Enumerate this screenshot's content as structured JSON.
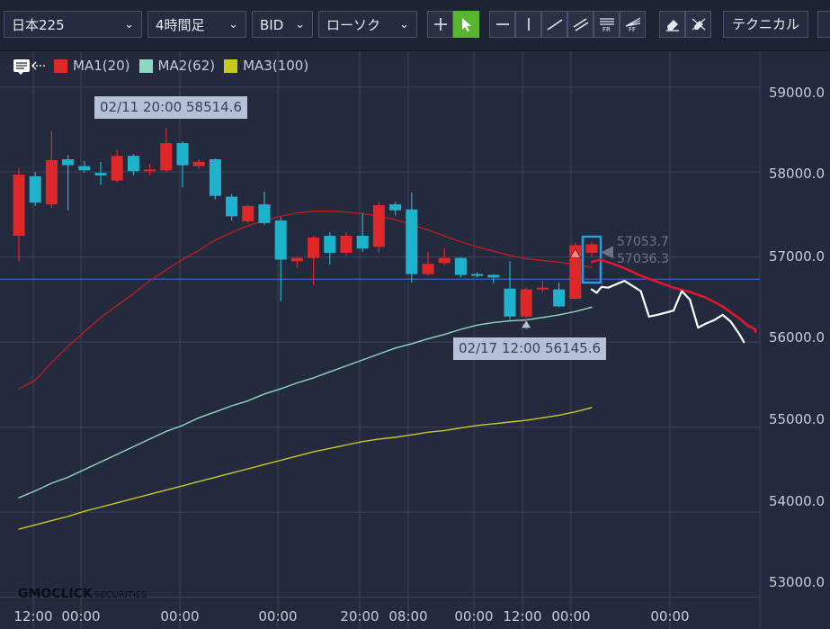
{
  "toolbar": {
    "symbol": "日本225",
    "timeframe": "4時間足",
    "price_type": "BID",
    "chart_style": "ローソク",
    "technical_label": "テクニカル"
  },
  "colors": {
    "background": "#242a3e",
    "toolbar": "#1e2333",
    "active_tool": "#58b532",
    "bull_candle": "#e02727",
    "bear_candle": "#1eb3cc",
    "ma1": "#b71c1c",
    "ma2": "#8fd8c0",
    "ma3": "#c8c81e",
    "current_price_line": "#3b62b8",
    "annotation_red": "#e0152d",
    "annotation_white": "#ffffff",
    "highlight_box": "#1fa0e8"
  },
  "legend": [
    {
      "label": "MA1(20)",
      "color": "#e02727"
    },
    {
      "label": "MA2(62)",
      "color": "#8fd8c0"
    },
    {
      "label": "MA3(100)",
      "color": "#c8c81e"
    }
  ],
  "tooltips": {
    "high": "02/11 20:00 58514.6",
    "low": "02/17 12:00 56145.6"
  },
  "price_labels": {
    "upper": "57053.7",
    "lower": "57036.3"
  },
  "logo": {
    "main": "GMOCLICK",
    "sub": "SECURITIES"
  },
  "chart_data": {
    "type": "candlestick",
    "x_labels": [
      "12:00",
      "00:00",
      "00:00",
      "00:00",
      "20:00",
      "08:00",
      "00:00",
      "12:00",
      "00:00",
      "00:00"
    ],
    "y_labels": [
      "59000.0",
      "58000.0",
      "57000.0",
      "56000.0",
      "55000.0",
      "54000.0",
      "53000.0"
    ],
    "y_ticks": [
      59000,
      58000,
      57000,
      56000,
      55000,
      54000,
      53000
    ],
    "ylim": [
      52880,
      59420
    ],
    "x_range": [
      0,
      45
    ],
    "current_price": 56740,
    "candles": [
      {
        "i": 0,
        "o": 57250,
        "c": 57970,
        "h": 58050,
        "l": 56950
      },
      {
        "i": 1,
        "o": 57950,
        "c": 57640,
        "h": 58000,
        "l": 57600
      },
      {
        "i": 2,
        "o": 57620,
        "c": 58140,
        "h": 58480,
        "l": 57580
      },
      {
        "i": 3,
        "o": 58150,
        "c": 58080,
        "h": 58200,
        "l": 57550
      },
      {
        "i": 4,
        "o": 58070,
        "c": 58020,
        "h": 58130,
        "l": 57990
      },
      {
        "i": 5,
        "o": 57990,
        "c": 57960,
        "h": 58120,
        "l": 57850
      },
      {
        "i": 6,
        "o": 57900,
        "c": 58190,
        "h": 58260,
        "l": 57880
      },
      {
        "i": 7,
        "o": 58190,
        "c": 58010,
        "h": 58210,
        "l": 57960
      },
      {
        "i": 8,
        "o": 58020,
        "c": 58030,
        "h": 58100,
        "l": 57960
      },
      {
        "i": 9,
        "o": 58020,
        "c": 58340,
        "h": 58514.6,
        "l": 57990
      },
      {
        "i": 10,
        "o": 58340,
        "c": 58080,
        "h": 58360,
        "l": 57820
      },
      {
        "i": 11,
        "o": 58070,
        "c": 58120,
        "h": 58150,
        "l": 58040
      },
      {
        "i": 12,
        "o": 58150,
        "c": 57720,
        "h": 58160,
        "l": 57680
      },
      {
        "i": 13,
        "o": 57710,
        "c": 57480,
        "h": 57740,
        "l": 57430
      },
      {
        "i": 14,
        "o": 57420,
        "c": 57600,
        "h": 57620,
        "l": 57400
      },
      {
        "i": 15,
        "o": 57620,
        "c": 57400,
        "h": 57770,
        "l": 57380
      },
      {
        "i": 16,
        "o": 57430,
        "c": 56970,
        "h": 57470,
        "l": 56480
      },
      {
        "i": 17,
        "o": 56950,
        "c": 56990,
        "h": 57000,
        "l": 56880
      },
      {
        "i": 18,
        "o": 56990,
        "c": 57230,
        "h": 57250,
        "l": 56670
      },
      {
        "i": 19,
        "o": 57250,
        "c": 57050,
        "h": 57290,
        "l": 56910
      },
      {
        "i": 20,
        "o": 57050,
        "c": 57250,
        "h": 57290,
        "l": 57020
      },
      {
        "i": 21,
        "o": 57250,
        "c": 57100,
        "h": 57520,
        "l": 57060
      },
      {
        "i": 22,
        "o": 57120,
        "c": 57610,
        "h": 57650,
        "l": 57050
      },
      {
        "i": 23,
        "o": 57620,
        "c": 57550,
        "h": 57650,
        "l": 57490
      },
      {
        "i": 24,
        "o": 57560,
        "c": 56800,
        "h": 57760,
        "l": 56700
      },
      {
        "i": 25,
        "o": 56800,
        "c": 56920,
        "h": 57060,
        "l": 56780
      },
      {
        "i": 26,
        "o": 56930,
        "c": 56990,
        "h": 57100,
        "l": 56900
      },
      {
        "i": 27,
        "o": 56990,
        "c": 56790,
        "h": 57000,
        "l": 56760
      },
      {
        "i": 28,
        "o": 56800,
        "c": 56790,
        "h": 56820,
        "l": 56760
      },
      {
        "i": 29,
        "o": 56790,
        "c": 56760,
        "h": 56800,
        "l": 56690
      },
      {
        "i": 30,
        "o": 56630,
        "c": 56300,
        "h": 56950,
        "l": 56260
      },
      {
        "i": 31,
        "o": 56300,
        "c": 56620,
        "h": 56640,
        "l": 56145.6
      },
      {
        "i": 32,
        "o": 56620,
        "c": 56640,
        "h": 56720,
        "l": 56590
      },
      {
        "i": 33,
        "o": 56620,
        "c": 56420,
        "h": 56700,
        "l": 56410
      },
      {
        "i": 34,
        "o": 56510,
        "c": 57140,
        "h": 57170,
        "l": 56500
      },
      {
        "i": 35,
        "o": 57050,
        "c": 57150,
        "h": 57180,
        "l": 57000
      }
    ],
    "ma1": [
      [
        0,
        55450
      ],
      [
        1,
        55550
      ],
      [
        2,
        55760
      ],
      [
        3,
        55950
      ],
      [
        4,
        56120
      ],
      [
        5,
        56290
      ],
      [
        6,
        56430
      ],
      [
        7,
        56570
      ],
      [
        8,
        56720
      ],
      [
        9,
        56850
      ],
      [
        10,
        56970
      ],
      [
        11,
        57080
      ],
      [
        12,
        57200
      ],
      [
        13,
        57290
      ],
      [
        14,
        57370
      ],
      [
        15,
        57430
      ],
      [
        16,
        57480
      ],
      [
        17,
        57520
      ],
      [
        18,
        57540
      ],
      [
        19,
        57540
      ],
      [
        20,
        57530
      ],
      [
        21,
        57510
      ],
      [
        22,
        57480
      ],
      [
        23,
        57440
      ],
      [
        24,
        57380
      ],
      [
        25,
        57320
      ],
      [
        26,
        57250
      ],
      [
        27,
        57180
      ],
      [
        28,
        57120
      ],
      [
        29,
        57070
      ],
      [
        30,
        57020
      ],
      [
        31,
        56980
      ],
      [
        32,
        56960
      ],
      [
        33,
        56940
      ],
      [
        34,
        56910
      ],
      [
        35,
        56880
      ]
    ],
    "ma2": [
      [
        0,
        54170
      ],
      [
        1,
        54250
      ],
      [
        2,
        54340
      ],
      [
        3,
        54410
      ],
      [
        4,
        54500
      ],
      [
        5,
        54590
      ],
      [
        6,
        54680
      ],
      [
        7,
        54770
      ],
      [
        8,
        54860
      ],
      [
        9,
        54950
      ],
      [
        10,
        55020
      ],
      [
        11,
        55110
      ],
      [
        12,
        55180
      ],
      [
        13,
        55250
      ],
      [
        14,
        55310
      ],
      [
        15,
        55390
      ],
      [
        16,
        55450
      ],
      [
        17,
        55520
      ],
      [
        18,
        55580
      ],
      [
        19,
        55650
      ],
      [
        20,
        55720
      ],
      [
        21,
        55790
      ],
      [
        22,
        55860
      ],
      [
        23,
        55930
      ],
      [
        24,
        55980
      ],
      [
        25,
        56040
      ],
      [
        26,
        56090
      ],
      [
        27,
        56150
      ],
      [
        28,
        56200
      ],
      [
        29,
        56230
      ],
      [
        30,
        56250
      ],
      [
        31,
        56260
      ],
      [
        32,
        56290
      ],
      [
        33,
        56320
      ],
      [
        34,
        56360
      ],
      [
        35,
        56410
      ]
    ],
    "ma3": [
      [
        0,
        53800
      ],
      [
        1,
        53850
      ],
      [
        2,
        53900
      ],
      [
        3,
        53950
      ],
      [
        4,
        54010
      ],
      [
        5,
        54060
      ],
      [
        6,
        54110
      ],
      [
        7,
        54160
      ],
      [
        8,
        54210
      ],
      [
        9,
        54260
      ],
      [
        10,
        54310
      ],
      [
        11,
        54360
      ],
      [
        12,
        54410
      ],
      [
        13,
        54460
      ],
      [
        14,
        54510
      ],
      [
        15,
        54560
      ],
      [
        16,
        54610
      ],
      [
        17,
        54660
      ],
      [
        18,
        54710
      ],
      [
        19,
        54750
      ],
      [
        20,
        54790
      ],
      [
        21,
        54830
      ],
      [
        22,
        54860
      ],
      [
        23,
        54880
      ],
      [
        24,
        54910
      ],
      [
        25,
        54940
      ],
      [
        26,
        54960
      ],
      [
        27,
        54990
      ],
      [
        28,
        55020
      ],
      [
        29,
        55040
      ],
      [
        30,
        55060
      ],
      [
        31,
        55080
      ],
      [
        32,
        55110
      ],
      [
        33,
        55140
      ],
      [
        34,
        55180
      ],
      [
        35,
        55230
      ]
    ],
    "annotation_red": [
      [
        35,
        56940
      ],
      [
        35.5,
        56970
      ],
      [
        36,
        56940
      ],
      [
        37,
        56870
      ],
      [
        38,
        56780
      ],
      [
        39,
        56710
      ],
      [
        40,
        56640
      ],
      [
        41,
        56590
      ],
      [
        42,
        56520
      ],
      [
        43,
        56420
      ],
      [
        44,
        56280
      ],
      [
        44.5,
        56200
      ],
      [
        45,
        56150
      ],
      [
        45,
        56120
      ]
    ],
    "annotation_white": [
      [
        35,
        56620
      ],
      [
        35.3,
        56580
      ],
      [
        35.6,
        56650
      ],
      [
        36,
        56640
      ],
      [
        37,
        56720
      ],
      [
        38,
        56600
      ],
      [
        38.5,
        56300
      ],
      [
        39,
        56320
      ],
      [
        40,
        56370
      ],
      [
        40.5,
        56600
      ],
      [
        41,
        56500
      ],
      [
        41.5,
        56170
      ],
      [
        42,
        56220
      ],
      [
        42.5,
        56260
      ],
      [
        43,
        56320
      ],
      [
        43.5,
        56240
      ],
      [
        44,
        56100
      ],
      [
        44.3,
        56000
      ]
    ]
  }
}
